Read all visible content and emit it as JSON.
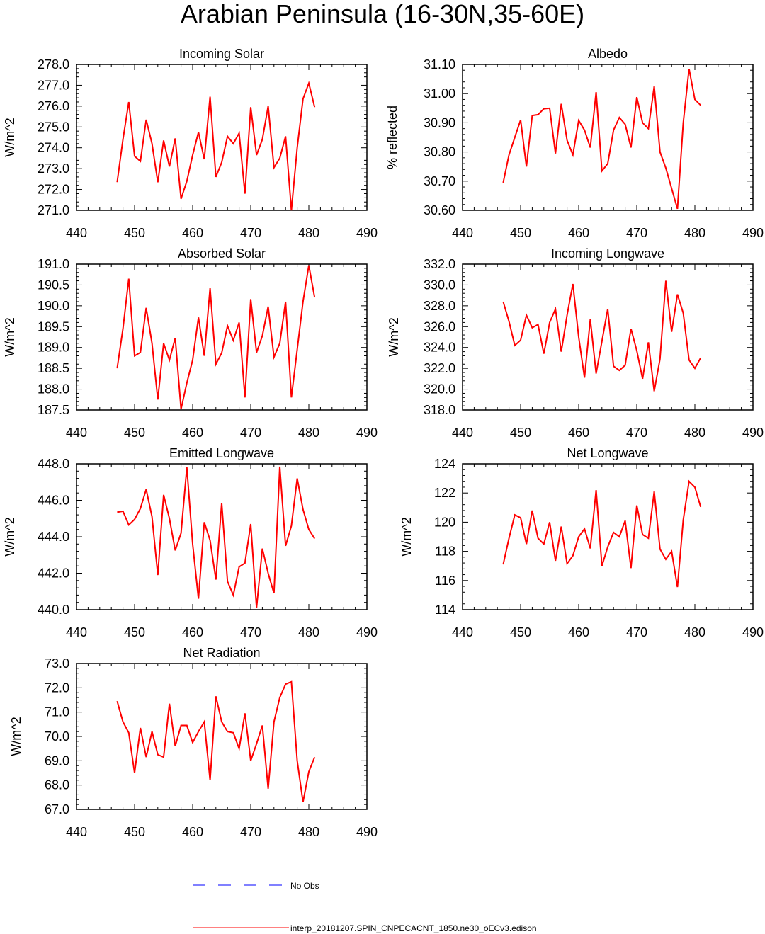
{
  "title": "Arabian Peninsula (16-30N,35-60E)",
  "colors": {
    "model": "#ff0000",
    "obs": "#0000ff"
  },
  "chart_data": [
    {
      "type": "line",
      "title": "Incoming Solar",
      "ylabel": "W/m^2",
      "xlim": [
        440,
        490
      ],
      "ylim": [
        271.0,
        278.0
      ],
      "xticks": [
        "440",
        "450",
        "460",
        "470",
        "480",
        "490"
      ],
      "yticks": [
        "271.0",
        "272.0",
        "273.0",
        "274.0",
        "275.0",
        "276.0",
        "277.0",
        "278.0"
      ],
      "series": [
        {
          "name": "interp_20181207.SPIN_CNPECACNT_1850.ne30_oECv3.edison",
          "x": [
            447,
            448,
            449,
            450,
            451,
            452,
            453,
            454,
            455,
            456,
            457,
            458,
            459,
            460,
            461,
            462,
            463,
            464,
            465,
            466,
            467,
            468,
            469,
            470,
            471,
            472,
            473,
            474,
            475,
            476,
            477,
            478,
            479,
            480,
            481
          ],
          "values": [
            272.35,
            274.4,
            276.2,
            273.6,
            273.35,
            275.35,
            274.2,
            272.35,
            274.35,
            273.1,
            274.45,
            271.55,
            272.4,
            273.65,
            274.75,
            273.45,
            276.45,
            272.6,
            273.3,
            274.55,
            274.2,
            274.7,
            271.8,
            275.95,
            273.65,
            274.4,
            276.0,
            273.05,
            273.5,
            274.55,
            271.0,
            274.0,
            276.35,
            277.1,
            275.95
          ]
        }
      ]
    },
    {
      "type": "line",
      "title": "Albedo",
      "ylabel": "% reflected",
      "xlim": [
        440,
        490
      ],
      "ylim": [
        30.6,
        31.1
      ],
      "xticks": [
        "440",
        "450",
        "460",
        "470",
        "480",
        "490"
      ],
      "yticks": [
        "30.60",
        "30.70",
        "30.80",
        "30.90",
        "31.00",
        "31.10"
      ],
      "series": [
        {
          "name": "interp_20181207.SPIN_CNPECACNT_1850.ne30_oECv3.edison",
          "x": [
            447,
            448,
            449,
            450,
            451,
            452,
            453,
            454,
            455,
            456,
            457,
            458,
            459,
            460,
            461,
            462,
            463,
            464,
            465,
            466,
            467,
            468,
            469,
            470,
            471,
            472,
            473,
            474,
            475,
            476,
            477,
            478,
            479,
            480,
            481
          ],
          "values": [
            30.695,
            30.79,
            30.85,
            30.91,
            30.75,
            30.925,
            30.928,
            30.948,
            30.95,
            30.795,
            30.965,
            30.84,
            30.79,
            30.908,
            30.875,
            30.815,
            31.005,
            30.735,
            30.76,
            30.875,
            30.918,
            30.895,
            30.815,
            30.988,
            30.9,
            30.88,
            31.025,
            30.8,
            30.745,
            30.675,
            30.605,
            30.9,
            31.085,
            30.98,
            30.96
          ]
        }
      ]
    },
    {
      "type": "line",
      "title": "Absorbed Solar",
      "ylabel": "W/m^2",
      "xlim": [
        440,
        490
      ],
      "ylim": [
        187.5,
        191.0
      ],
      "xticks": [
        "440",
        "450",
        "460",
        "470",
        "480",
        "490"
      ],
      "yticks": [
        "187.5",
        "188.0",
        "188.5",
        "189.0",
        "189.5",
        "190.0",
        "190.5",
        "191.0"
      ],
      "series": [
        {
          "name": "interp_20181207.SPIN_CNPECACNT_1850.ne30_oECv3.edison",
          "x": [
            447,
            448,
            449,
            450,
            451,
            452,
            453,
            454,
            455,
            456,
            457,
            458,
            459,
            460,
            461,
            462,
            463,
            464,
            465,
            466,
            467,
            468,
            469,
            470,
            471,
            472,
            473,
            474,
            475,
            476,
            477,
            478,
            479,
            480,
            481
          ],
          "values": [
            188.5,
            189.45,
            190.65,
            188.8,
            188.88,
            189.95,
            189.1,
            187.75,
            189.1,
            188.7,
            189.23,
            187.52,
            188.15,
            188.7,
            189.72,
            188.8,
            190.42,
            188.6,
            188.87,
            189.52,
            189.17,
            189.6,
            187.8,
            190.16,
            188.88,
            189.28,
            189.98,
            188.77,
            189.1,
            190.1,
            187.8,
            188.95,
            190.1,
            190.97,
            190.2
          ]
        }
      ]
    },
    {
      "type": "line",
      "title": "Incoming Longwave",
      "ylabel": "W/m^2",
      "xlim": [
        440,
        490
      ],
      "ylim": [
        318.0,
        332.0
      ],
      "xticks": [
        "440",
        "450",
        "460",
        "470",
        "480",
        "490"
      ],
      "yticks": [
        "318.0",
        "320.0",
        "322.0",
        "324.0",
        "326.0",
        "328.0",
        "330.0",
        "332.0"
      ],
      "series": [
        {
          "name": "interp_20181207.SPIN_CNPECACNT_1850.ne30_oECv3.edison",
          "x": [
            447,
            448,
            449,
            450,
            451,
            452,
            453,
            454,
            455,
            456,
            457,
            458,
            459,
            460,
            461,
            462,
            463,
            464,
            465,
            466,
            467,
            468,
            469,
            470,
            471,
            472,
            473,
            474,
            475,
            476,
            477,
            478,
            479,
            480,
            481
          ],
          "values": [
            328.4,
            326.5,
            324.2,
            324.7,
            327.1,
            325.9,
            326.2,
            323.4,
            326.4,
            327.7,
            323.6,
            327.1,
            330.1,
            325.0,
            321.1,
            326.7,
            321.5,
            324.6,
            327.7,
            322.2,
            321.8,
            322.3,
            325.8,
            323.7,
            321.0,
            324.5,
            319.8,
            322.9,
            330.4,
            325.5,
            329.1,
            327.3,
            322.8,
            322.0,
            323.0
          ]
        }
      ]
    },
    {
      "type": "line",
      "title": "Emitted Longwave",
      "ylabel": "W/m^2",
      "xlim": [
        440,
        490
      ],
      "ylim": [
        440.0,
        448.0
      ],
      "xticks": [
        "440",
        "450",
        "460",
        "470",
        "480",
        "490"
      ],
      "yticks": [
        "440.0",
        "442.0",
        "444.0",
        "446.0",
        "448.0"
      ],
      "series": [
        {
          "name": "interp_20181207.SPIN_CNPECACNT_1850.ne30_oECv3.edison",
          "x": [
            447,
            448,
            449,
            450,
            451,
            452,
            453,
            454,
            455,
            456,
            457,
            458,
            459,
            460,
            461,
            462,
            463,
            464,
            465,
            466,
            467,
            468,
            469,
            470,
            471,
            472,
            473,
            474,
            475,
            476,
            477,
            478,
            479,
            480,
            481
          ],
          "values": [
            445.35,
            445.4,
            444.65,
            444.95,
            445.55,
            446.6,
            445.1,
            441.9,
            446.3,
            445.0,
            443.25,
            444.2,
            447.8,
            443.6,
            440.6,
            444.8,
            443.8,
            441.65,
            445.85,
            441.55,
            440.8,
            442.35,
            442.55,
            444.7,
            440.1,
            443.35,
            442.0,
            440.9,
            447.85,
            443.5,
            444.6,
            447.2,
            445.5,
            444.4,
            443.9
          ]
        }
      ]
    },
    {
      "type": "line",
      "title": "Net Longwave",
      "ylabel": "W/m^2",
      "xlim": [
        440,
        490
      ],
      "ylim": [
        114,
        124
      ],
      "xticks": [
        "440",
        "450",
        "460",
        "470",
        "480",
        "490"
      ],
      "yticks": [
        "114",
        "116",
        "118",
        "120",
        "122",
        "124"
      ],
      "series": [
        {
          "name": "interp_20181207.SPIN_CNPECACNT_1850.ne30_oECv3.edison",
          "x": [
            447,
            448,
            449,
            450,
            451,
            452,
            453,
            454,
            455,
            456,
            457,
            458,
            459,
            460,
            461,
            462,
            463,
            464,
            465,
            466,
            467,
            468,
            469,
            470,
            471,
            472,
            473,
            474,
            475,
            476,
            477,
            478,
            479,
            480,
            481
          ],
          "values": [
            117.1,
            118.9,
            120.5,
            120.3,
            118.5,
            120.8,
            118.9,
            118.5,
            120.0,
            117.35,
            119.7,
            117.15,
            117.7,
            119.0,
            119.55,
            118.2,
            122.2,
            117.0,
            118.3,
            119.3,
            119.0,
            120.1,
            116.85,
            121.15,
            119.15,
            118.9,
            122.1,
            118.15,
            117.45,
            118.0,
            115.55,
            120.15,
            122.8,
            122.4,
            121.05
          ]
        }
      ]
    },
    {
      "type": "line",
      "title": "Net Radiation",
      "ylabel": "W/m^2",
      "xlim": [
        440,
        490
      ],
      "ylim": [
        67.0,
        73.0
      ],
      "xticks": [
        "440",
        "450",
        "460",
        "470",
        "480",
        "490"
      ],
      "yticks": [
        "67.0",
        "68.0",
        "69.0",
        "70.0",
        "71.0",
        "72.0",
        "73.0"
      ],
      "series": [
        {
          "name": "interp_20181207.SPIN_CNPECACNT_1850.ne30_oECv3.edison",
          "x": [
            447,
            448,
            449,
            450,
            451,
            452,
            453,
            454,
            455,
            456,
            457,
            458,
            459,
            460,
            461,
            462,
            463,
            464,
            465,
            466,
            467,
            468,
            469,
            470,
            471,
            472,
            473,
            474,
            475,
            476,
            477,
            478,
            479,
            480,
            481
          ],
          "values": [
            71.45,
            70.6,
            70.15,
            68.5,
            70.35,
            69.15,
            70.2,
            69.25,
            69.15,
            71.35,
            69.6,
            70.45,
            70.45,
            69.75,
            70.2,
            70.6,
            68.2,
            71.65,
            70.6,
            70.2,
            70.15,
            69.5,
            70.95,
            69.0,
            69.7,
            70.45,
            67.85,
            70.6,
            71.6,
            72.15,
            72.25,
            69.0,
            67.3,
            68.55,
            69.15
          ]
        }
      ]
    }
  ],
  "legend": [
    {
      "label": "No Obs",
      "style": "dashed",
      "color": "#0000ff"
    },
    {
      "label": "interp_20181207.SPIN_CNPECACNT_1850.ne30_oECv3.edison",
      "style": "solid",
      "color": "#ff0000"
    }
  ]
}
